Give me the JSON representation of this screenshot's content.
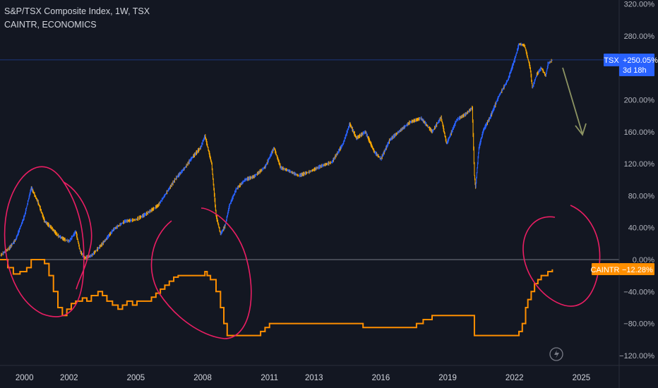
{
  "legend": {
    "title": "S&P/TSX Composite Index, 1W, TSX",
    "subtitle": "CAINTR, ECONOMICS"
  },
  "badges": {
    "tsx_name": "TSX",
    "tsx_value": "+250.05%",
    "tsx_countdown": "3d 18h",
    "caintr_name": "CAINTR",
    "caintr_value": "−12.28%"
  },
  "colors": {
    "background": "#131722",
    "tsx_up": "#2962ff",
    "tsx_down": "#f7a600",
    "caintr": "#ff8f00",
    "zero_line": "#d1d4dc",
    "annotation_circles": "#e91e63",
    "annotation_arrow": "#8d9463",
    "axis_text": "#b2b5be"
  },
  "chart_data": {
    "type": "line",
    "percent_axis": {
      "ticks": [
        "320.00%",
        "280.00%",
        "240.00%",
        "200.00%",
        "160.00%",
        "120.00%",
        "80.00%",
        "40.00%",
        "0.00%",
        "−40.00%",
        "−80.00%",
        "−120.00%"
      ],
      "values": [
        320,
        280,
        240,
        200,
        160,
        120,
        80,
        40,
        0,
        -40,
        -80,
        -120
      ],
      "range": [
        -135,
        325
      ]
    },
    "x_axis": {
      "ticks": [
        "2000",
        "2002",
        "2005",
        "2008",
        "2011",
        "2013",
        "2016",
        "2019",
        "2022",
        "2025"
      ],
      "values": [
        2000,
        2002,
        2005,
        2008,
        2011,
        2013,
        2016,
        2019,
        2022,
        2025
      ],
      "range": [
        1998.9,
        2026.7
      ]
    },
    "series": [
      {
        "name": "TSX",
        "x": [
          1998.9,
          1999.3,
          1999.6,
          2000.0,
          2000.3,
          2000.6,
          2000.9,
          2001.2,
          2001.5,
          2001.8,
          2002.0,
          2002.3,
          2002.5,
          2002.7,
          2003.0,
          2003.5,
          2004.0,
          2004.5,
          2005.0,
          2005.5,
          2006.0,
          2006.4,
          2006.8,
          2007.2,
          2007.5,
          2007.9,
          2008.1,
          2008.4,
          2008.6,
          2008.8,
          2009.0,
          2009.2,
          2009.5,
          2009.9,
          2010.3,
          2010.8,
          2011.2,
          2011.5,
          2011.8,
          2012.3,
          2012.8,
          2013.3,
          2013.8,
          2014.3,
          2014.6,
          2014.9,
          2015.3,
          2015.7,
          2016.0,
          2016.4,
          2016.8,
          2017.3,
          2017.8,
          2018.3,
          2018.7,
          2018.95,
          2019.4,
          2019.8,
          2020.1,
          2020.2,
          2020.25,
          2020.4,
          2020.6,
          2020.9,
          2021.3,
          2021.7,
          2022.0,
          2022.2,
          2022.45,
          2022.7,
          2022.8,
          2023.0,
          2023.2,
          2023.4,
          2023.5,
          2023.7
        ],
        "values": [
          5,
          14,
          25,
          55,
          90,
          72,
          48,
          40,
          30,
          25,
          23,
          35,
          10,
          2,
          5,
          20,
          38,
          48,
          50,
          58,
          68,
          85,
          102,
          115,
          127,
          140,
          155,
          120,
          55,
          32,
          42,
          68,
          88,
          100,
          104,
          116,
          140,
          115,
          112,
          105,
          110,
          117,
          122,
          145,
          170,
          152,
          160,
          135,
          126,
          150,
          160,
          172,
          177,
          160,
          178,
          145,
          175,
          182,
          190,
          105,
          90,
          140,
          162,
          178,
          205,
          225,
          250,
          270,
          268,
          240,
          215,
          232,
          240,
          230,
          245,
          250
        ]
      },
      {
        "name": "CAINTR",
        "x": [
          1998.9,
          1999.25,
          1999.5,
          1999.8,
          2000.1,
          2000.3,
          2000.6,
          2000.9,
          2001.1,
          2001.3,
          2001.5,
          2001.7,
          2001.9,
          2002.1,
          2002.3,
          2002.6,
          2002.8,
          2003.0,
          2003.3,
          2003.5,
          2003.7,
          2003.95,
          2004.2,
          2004.4,
          2004.6,
          2004.85,
          2005.05,
          2005.3,
          2005.5,
          2005.7,
          2005.9,
          2006.1,
          2006.3,
          2006.5,
          2006.7,
          2006.9,
          2007.1,
          2007.3,
          2007.5,
          2007.8,
          2008.1,
          2008.2,
          2008.35,
          2008.6,
          2008.8,
          2008.95,
          2009.1,
          2009.25,
          2009.5,
          2009.8,
          2010.1,
          2010.4,
          2010.6,
          2010.8,
          2011.0,
          2011.3,
          2011.7,
          2012.2,
          2012.8,
          2013.5,
          2014.5,
          2015.0,
          2015.2,
          2015.5,
          2016.0,
          2016.8,
          2017.3,
          2017.6,
          2017.9,
          2018.3,
          2018.7,
          2019.0,
          2019.5,
          2020.0,
          2020.15,
          2020.2,
          2021.0,
          2021.8,
          2022.05,
          2022.2,
          2022.35,
          2022.5,
          2022.6,
          2022.75,
          2022.9,
          2023.05,
          2023.2,
          2023.4,
          2023.5,
          2023.7
        ],
        "values": [
          0,
          -10,
          -18,
          -15,
          -10,
          0,
          0,
          -5,
          -20,
          -40,
          -60,
          -70,
          -62,
          -55,
          -52,
          -48,
          -52,
          -45,
          -40,
          -45,
          -52,
          -57,
          -62,
          -57,
          -52,
          -57,
          -52,
          -52,
          -52,
          -47,
          -42,
          -37,
          -32,
          -27,
          -22,
          -20,
          -20,
          -20,
          -20,
          -20,
          -15,
          -20,
          -25,
          -40,
          -60,
          -80,
          -95,
          -95,
          -95,
          -95,
          -95,
          -95,
          -90,
          -85,
          -80,
          -80,
          -80,
          -80,
          -80,
          -80,
          -80,
          -80,
          -85,
          -85,
          -85,
          -85,
          -85,
          -80,
          -75,
          -70,
          -70,
          -70,
          -70,
          -70,
          -70,
          -95,
          -95,
          -95,
          -95,
          -90,
          -80,
          -60,
          -50,
          -40,
          -30,
          -25,
          -20,
          -20,
          -15,
          -12.28
        ]
      }
    ],
    "annotations": {
      "circles": 4,
      "arrow": "down"
    },
    "grid": false,
    "legend": "top-left"
  }
}
